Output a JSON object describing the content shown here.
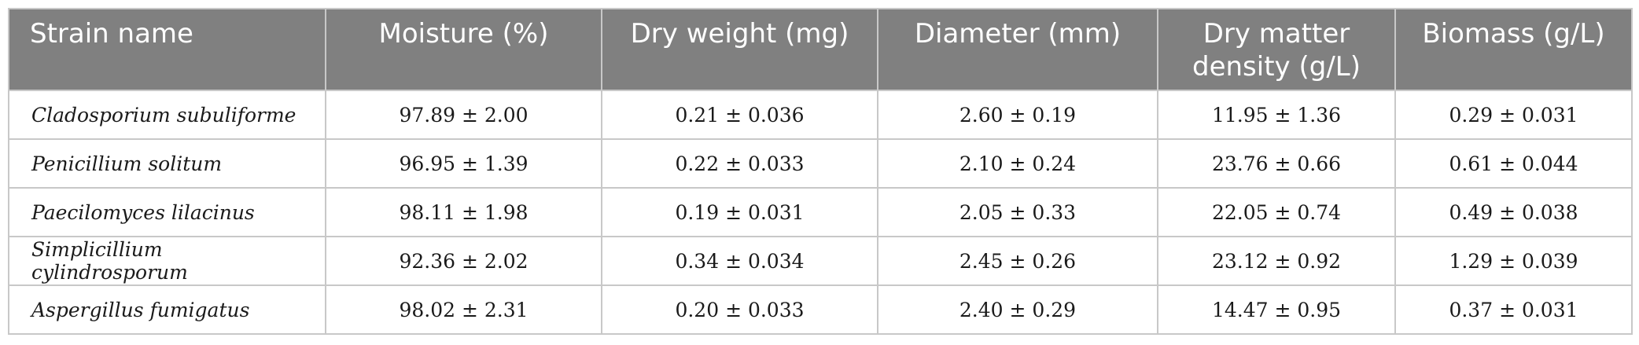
{
  "table": {
    "headers": [
      "Strain name",
      "Moisture (%)",
      "Dry weight (mg)",
      "Diameter (mm)",
      "Dry matter density (g/L)",
      "Biomass (g/L)"
    ],
    "rows": [
      [
        "Cladosporium subuliforme",
        "97.89 ± 2.00",
        "0.21 ± 0.036",
        "2.60 ± 0.19",
        "11.95 ± 1.36",
        "0.29 ± 0.031"
      ],
      [
        "Penicillium solitum",
        "96.95 ± 1.39",
        "0.22 ± 0.033",
        "2.10 ± 0.24",
        "23.76 ± 0.66",
        "0.61 ± 0.044"
      ],
      [
        "Paecilomyces lilacinus",
        "98.11 ± 1.98",
        "0.19 ± 0.031",
        "2.05 ± 0.33",
        "22.05 ± 0.74",
        "0.49 ± 0.038"
      ],
      [
        "Simplicillium cylindrosporum",
        "92.36 ± 2.02",
        "0.34 ± 0.034",
        "2.45 ± 0.26",
        "23.12 ± 0.92",
        "1.29 ± 0.039"
      ],
      [
        "Aspergillus fumigatus",
        "98.02 ± 2.31",
        "0.20 ± 0.033",
        "2.40 ± 0.29",
        "14.47 ± 0.95",
        "0.37 ± 0.031"
      ]
    ]
  },
  "colors": {
    "header_background": "#808080",
    "header_text": "#ffffff",
    "border": "#c8c8c8",
    "body_text": "#1a1a1a"
  }
}
